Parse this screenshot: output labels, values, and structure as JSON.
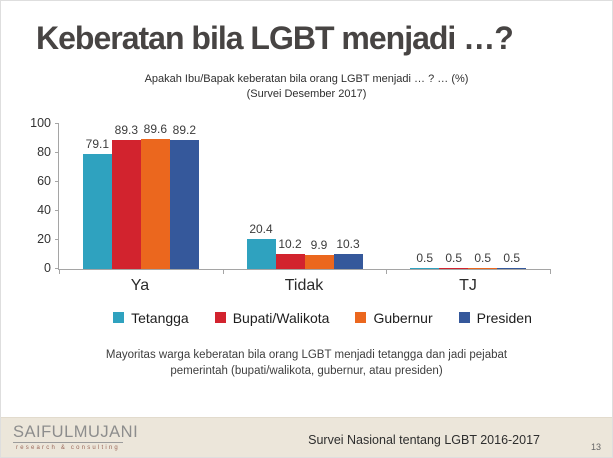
{
  "slide": {
    "title": "Keberatan bila LGBT menjadi …?",
    "subtitle": {
      "line1": "Apakah Ibu/Bapak keberatan bila orang LGBT menjadi … ? … (%)",
      "line2": "(Survei Desember 2017)"
    },
    "note": {
      "line1": "Mayoritas warga keberatan bila orang LGBT menjadi tetangga dan jadi pejabat",
      "line2": "pemerintah (bupati/walikota, gubernur, atau presiden)"
    },
    "footer": {
      "logo_text": "SAIFULMUJANI",
      "logo_subtext": "research & consulting",
      "survey_label": "Survei Nasional tentang LGBT 2016-2017",
      "page_number": "13"
    }
  },
  "chart_data": {
    "type": "bar",
    "title": "Apakah Ibu/Bapak keberatan bila orang LGBT menjadi … ? … (%)",
    "subtitle": "(Survei Desember 2017)",
    "categories": [
      "Ya",
      "Tidak",
      "TJ"
    ],
    "series": [
      {
        "name": "Tetangga",
        "color": "#2FA2BF",
        "values": [
          79.1,
          20.4,
          0.5
        ]
      },
      {
        "name": "Bupati/Walikota",
        "color": "#D2232E",
        "values": [
          89.3,
          10.2,
          0.5
        ]
      },
      {
        "name": "Gubernur",
        "color": "#EB671E",
        "values": [
          89.6,
          9.9,
          0.5
        ]
      },
      {
        "name": "Presiden",
        "color": "#35589B",
        "values": [
          89.2,
          10.3,
          0.5
        ]
      }
    ],
    "ylim": [
      0,
      100
    ],
    "yticks": [
      0,
      20,
      40,
      60,
      80,
      100
    ],
    "grid": false,
    "legend_position": "bottom",
    "value_labels": true,
    "axis_color": "#a5a5a5"
  }
}
